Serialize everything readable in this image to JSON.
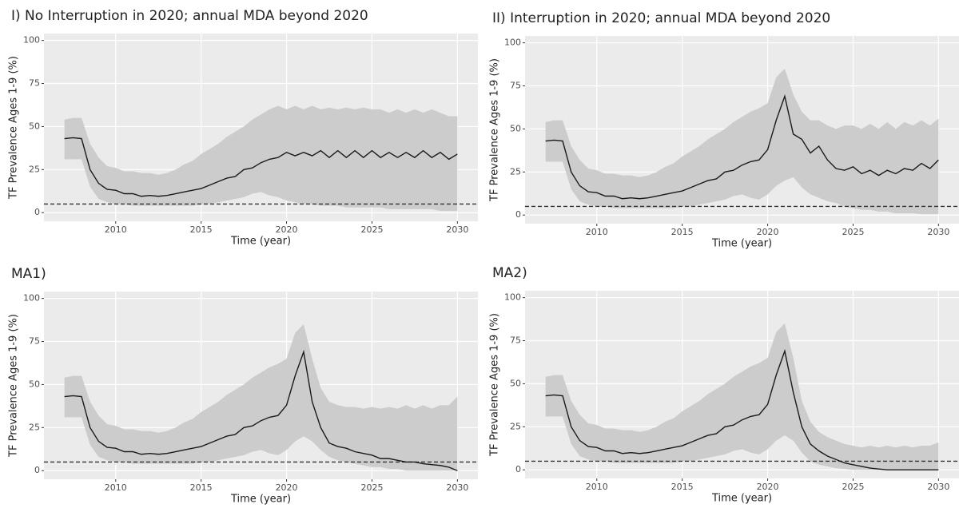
{
  "chart_data": [
    {
      "type": "line",
      "title": "I) No Interruption in 2020; annual MDA beyond 2020",
      "x_label": "Time (year)",
      "y_label": "TF Prevalence Ages 1-9 (%)",
      "xlim": [
        2005.8,
        2031.2
      ],
      "ylim": [
        -5,
        104
      ],
      "xticks": [
        2010,
        2015,
        2020,
        2025,
        2030
      ],
      "yticks": [
        0,
        25,
        50,
        75,
        100
      ],
      "grid": true,
      "x": [
        2007,
        2007.5,
        2008,
        2008.5,
        2009,
        2009.5,
        2010,
        2010.5,
        2011,
        2011.5,
        2012,
        2012.5,
        2013,
        2013.5,
        2014,
        2014.5,
        2015,
        2015.5,
        2016,
        2016.5,
        2017,
        2017.5,
        2018,
        2018.5,
        2019,
        2019.5,
        2020,
        2020.5,
        2021,
        2021.5,
        2022,
        2022.5,
        2023,
        2023.5,
        2024,
        2024.5,
        2025,
        2025.5,
        2026,
        2026.5,
        2027,
        2027.5,
        2028,
        2028.5,
        2029,
        2029.5,
        2030
      ],
      "series": [
        {
          "color": "#1a1a1a",
          "values": [
            43,
            43.5,
            43,
            25,
            17,
            13.5,
            13,
            11,
            11,
            9.5,
            10,
            9.5,
            10,
            11,
            12,
            13,
            14,
            16,
            18,
            20,
            21,
            25,
            26,
            29,
            31,
            32,
            35,
            33,
            35,
            33,
            36,
            32,
            36,
            32,
            36,
            32,
            36,
            32,
            35,
            32,
            35,
            32,
            36,
            32,
            35,
            31,
            34
          ]
        }
      ],
      "band": {
        "color": "#cccccc",
        "lower": [
          31,
          31,
          31,
          15,
          8,
          6,
          5,
          5,
          4,
          4,
          4,
          4,
          4,
          4,
          4,
          4,
          5,
          5,
          6,
          7,
          8,
          9,
          11,
          12,
          10,
          9,
          7,
          6,
          5,
          5,
          4,
          4,
          4,
          3,
          3,
          3,
          3,
          3,
          2,
          2,
          2,
          2,
          2,
          2,
          1,
          1,
          1
        ],
        "upper": [
          54,
          55,
          55,
          40,
          32,
          27,
          26,
          24,
          24,
          23,
          23,
          22,
          23,
          25,
          28,
          30,
          34,
          37,
          40,
          44,
          47,
          50,
          54,
          57,
          60,
          62,
          60,
          62,
          60,
          62,
          60,
          61,
          60,
          61,
          60,
          61,
          60,
          60,
          58,
          60,
          58,
          60,
          58,
          60,
          58,
          56,
          56
        ]
      },
      "hline": {
        "value": 5,
        "style": "dashed",
        "color": "#333333"
      }
    },
    {
      "type": "line",
      "title": "II) Interruption in 2020; annual MDA beyond 2020",
      "x_label": "Time (year)",
      "y_label": "TF Prevalence Ages 1-9 (%)",
      "xlim": [
        2005.8,
        2031.2
      ],
      "ylim": [
        -5,
        104
      ],
      "xticks": [
        2010,
        2015,
        2020,
        2025,
        2030
      ],
      "yticks": [
        0,
        25,
        50,
        75,
        100
      ],
      "grid": true,
      "x": [
        2007,
        2007.5,
        2008,
        2008.5,
        2009,
        2009.5,
        2010,
        2010.5,
        2011,
        2011.5,
        2012,
        2012.5,
        2013,
        2013.5,
        2014,
        2014.5,
        2015,
        2015.5,
        2016,
        2016.5,
        2017,
        2017.5,
        2018,
        2018.5,
        2019,
        2019.5,
        2020,
        2020.5,
        2021,
        2021.5,
        2022,
        2022.5,
        2023,
        2023.5,
        2024,
        2024.5,
        2025,
        2025.5,
        2026,
        2026.5,
        2027,
        2027.5,
        2028,
        2028.5,
        2029,
        2029.5,
        2030
      ],
      "series": [
        {
          "color": "#1a1a1a",
          "values": [
            43,
            43.5,
            43,
            25,
            17,
            13.5,
            13,
            11,
            11,
            9.5,
            10,
            9.5,
            10,
            11,
            12,
            13,
            14,
            16,
            18,
            20,
            21,
            25,
            26,
            29,
            31,
            32,
            38,
            55,
            69,
            47,
            44,
            36,
            40,
            32,
            27,
            26,
            28,
            24,
            26,
            23,
            26,
            24,
            27,
            26,
            30,
            27,
            32
          ]
        }
      ],
      "band": {
        "color": "#cccccc",
        "lower": [
          31,
          31,
          31,
          15,
          8,
          6,
          5,
          5,
          4,
          4,
          4,
          4,
          4,
          4,
          4,
          4,
          5,
          5,
          6,
          7,
          8,
          9,
          11,
          12,
          10,
          9,
          12,
          17,
          20,
          22,
          16,
          12,
          10,
          8,
          7,
          5,
          4,
          3,
          3,
          2,
          2,
          1,
          1,
          1,
          0.5,
          0.5,
          0.5
        ],
        "upper": [
          54,
          55,
          55,
          40,
          32,
          27,
          26,
          24,
          24,
          23,
          23,
          22,
          23,
          25,
          28,
          30,
          34,
          37,
          40,
          44,
          47,
          50,
          54,
          57,
          60,
          62,
          65,
          80,
          85,
          70,
          60,
          55,
          55,
          52,
          50,
          52,
          52,
          50,
          53,
          50,
          54,
          50,
          54,
          52,
          55,
          52,
          56
        ]
      },
      "hline": {
        "value": 5,
        "style": "dashed",
        "color": "#333333"
      }
    },
    {
      "type": "line",
      "title": "MA1)",
      "x_label": "Time (year)",
      "y_label": "TF Prevalence Ages 1-9 (%)",
      "xlim": [
        2005.8,
        2031.2
      ],
      "ylim": [
        -5,
        104
      ],
      "xticks": [
        2010,
        2015,
        2020,
        2025,
        2030
      ],
      "yticks": [
        0,
        25,
        50,
        75,
        100
      ],
      "grid": true,
      "x": [
        2007,
        2007.5,
        2008,
        2008.5,
        2009,
        2009.5,
        2010,
        2010.5,
        2011,
        2011.5,
        2012,
        2012.5,
        2013,
        2013.5,
        2014,
        2014.5,
        2015,
        2015.5,
        2016,
        2016.5,
        2017,
        2017.5,
        2018,
        2018.5,
        2019,
        2019.5,
        2020,
        2020.5,
        2021,
        2021.5,
        2022,
        2022.5,
        2023,
        2023.5,
        2024,
        2024.5,
        2025,
        2025.5,
        2026,
        2026.5,
        2027,
        2027.5,
        2028,
        2028.5,
        2029,
        2029.5,
        2030
      ],
      "series": [
        {
          "color": "#1a1a1a",
          "values": [
            43,
            43.5,
            43,
            25,
            17,
            13.5,
            13,
            11,
            11,
            9.5,
            10,
            9.5,
            10,
            11,
            12,
            13,
            14,
            16,
            18,
            20,
            21,
            25,
            26,
            29,
            31,
            32,
            38,
            55,
            69,
            40,
            25,
            16,
            14,
            13,
            11,
            10,
            9,
            7,
            7,
            6,
            5,
            5,
            4,
            3.5,
            3,
            2,
            0
          ]
        }
      ],
      "band": {
        "color": "#cccccc",
        "lower": [
          31,
          31,
          31,
          15,
          8,
          6,
          5,
          5,
          4,
          4,
          4,
          4,
          4,
          4,
          4,
          4,
          5,
          5,
          6,
          7,
          8,
          9,
          11,
          12,
          10,
          9,
          12,
          17,
          20,
          17,
          12,
          8,
          6,
          5,
          4,
          3,
          2,
          2,
          1,
          1,
          0,
          0,
          0,
          0,
          0,
          0,
          0
        ],
        "upper": [
          54,
          55,
          55,
          40,
          32,
          27,
          26,
          24,
          24,
          23,
          23,
          22,
          23,
          25,
          28,
          30,
          34,
          37,
          40,
          44,
          47,
          50,
          54,
          57,
          60,
          62,
          65,
          80,
          85,
          65,
          48,
          40,
          38,
          37,
          37,
          36,
          37,
          36,
          37,
          36,
          38,
          36,
          38,
          36,
          38,
          38,
          43
        ]
      },
      "hline": {
        "value": 5,
        "style": "dashed",
        "color": "#333333"
      }
    },
    {
      "type": "line",
      "title": "MA2)",
      "x_label": "Time (year)",
      "y_label": "TF Prevalence Ages 1-9 (%)",
      "xlim": [
        2005.8,
        2031.2
      ],
      "ylim": [
        -5,
        104
      ],
      "xticks": [
        2010,
        2015,
        2020,
        2025,
        2030
      ],
      "yticks": [
        0,
        25,
        50,
        75,
        100
      ],
      "grid": true,
      "x": [
        2007,
        2007.5,
        2008,
        2008.5,
        2009,
        2009.5,
        2010,
        2010.5,
        2011,
        2011.5,
        2012,
        2012.5,
        2013,
        2013.5,
        2014,
        2014.5,
        2015,
        2015.5,
        2016,
        2016.5,
        2017,
        2017.5,
        2018,
        2018.5,
        2019,
        2019.5,
        2020,
        2020.5,
        2021,
        2021.5,
        2022,
        2022.5,
        2023,
        2023.5,
        2024,
        2024.5,
        2025,
        2025.5,
        2026,
        2026.5,
        2027,
        2027.5,
        2028,
        2028.5,
        2029,
        2029.5,
        2030
      ],
      "series": [
        {
          "color": "#1a1a1a",
          "values": [
            43,
            43.5,
            43,
            25,
            17,
            13.5,
            13,
            11,
            11,
            9.5,
            10,
            9.5,
            10,
            11,
            12,
            13,
            14,
            16,
            18,
            20,
            21,
            25,
            26,
            29,
            31,
            32,
            38,
            55,
            69,
            45,
            25,
            15,
            11,
            8,
            6,
            4,
            3,
            2,
            1,
            0.5,
            0,
            0,
            0,
            0,
            0,
            0,
            0
          ]
        }
      ],
      "band": {
        "color": "#cccccc",
        "lower": [
          31,
          31,
          31,
          15,
          8,
          6,
          5,
          5,
          4,
          4,
          4,
          4,
          4,
          4,
          4,
          4,
          5,
          5,
          6,
          7,
          8,
          9,
          11,
          12,
          10,
          9,
          12,
          17,
          20,
          17,
          10,
          5,
          3,
          2,
          1,
          0.5,
          0,
          0,
          0,
          0,
          0,
          0,
          0,
          0,
          0,
          0,
          0
        ],
        "upper": [
          54,
          55,
          55,
          40,
          32,
          27,
          26,
          24,
          24,
          23,
          23,
          22,
          23,
          25,
          28,
          30,
          34,
          37,
          40,
          44,
          47,
          50,
          54,
          57,
          60,
          62,
          65,
          80,
          85,
          65,
          40,
          28,
          22,
          19,
          17,
          15,
          14,
          13,
          14,
          13,
          14,
          13,
          14,
          13,
          14,
          14,
          16
        ]
      },
      "hline": {
        "value": 5,
        "style": "dashed",
        "color": "#333333"
      }
    }
  ]
}
